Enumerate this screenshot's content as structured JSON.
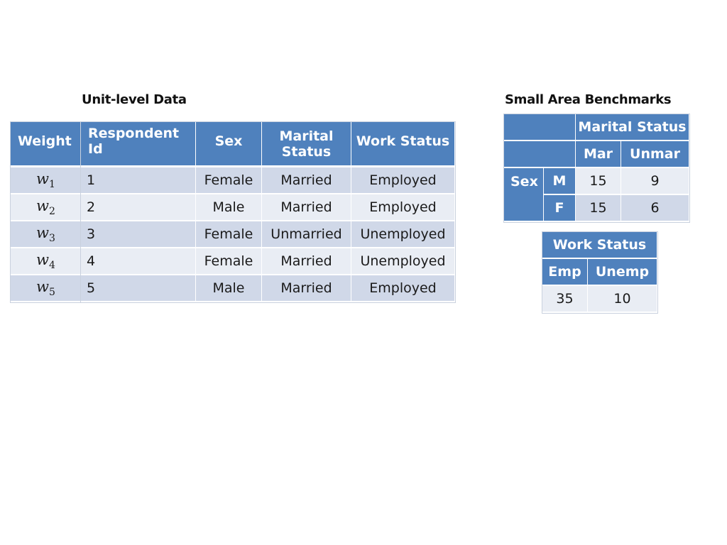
{
  "unit_title": "Unit-level Data",
  "bench_title": "Small Area Benchmarks",
  "weight": {
    "header": "Weight",
    "rows": [
      {
        "sym": "w",
        "sub": "1"
      },
      {
        "sym": "w",
        "sub": "2"
      },
      {
        "sym": "w",
        "sub": "3"
      },
      {
        "sym": "w",
        "sub": "4"
      },
      {
        "sym": "w",
        "sub": "5"
      }
    ]
  },
  "unit": {
    "headers": {
      "id": "Respondent Id",
      "sex": "Sex",
      "marital_line1": "Marital",
      "marital_line2": "Status",
      "work": "Work Status"
    },
    "rows": [
      {
        "id": "1",
        "sex": "Female",
        "marital": "Married",
        "work": "Employed"
      },
      {
        "id": "2",
        "sex": "Male",
        "marital": "Married",
        "work": "Employed"
      },
      {
        "id": "3",
        "sex": "Female",
        "marital": "Unmarried",
        "work": "Unemployed"
      },
      {
        "id": "4",
        "sex": "Female",
        "marital": "Married",
        "work": "Unemployed"
      },
      {
        "id": "5",
        "sex": "Male",
        "marital": "Married",
        "work": "Employed"
      }
    ]
  },
  "bench": {
    "marital_header": "Marital Status",
    "mar": "Mar",
    "unmar": "Unmar",
    "sex": "Sex",
    "rows": [
      {
        "label": "M",
        "mar": "15",
        "unmar": "9"
      },
      {
        "label": "F",
        "mar": "15",
        "unmar": "6"
      }
    ]
  },
  "work": {
    "header": "Work Status",
    "emp": "Emp",
    "unemp": "Unemp",
    "emp_val": "35",
    "unemp_val": "10"
  }
}
